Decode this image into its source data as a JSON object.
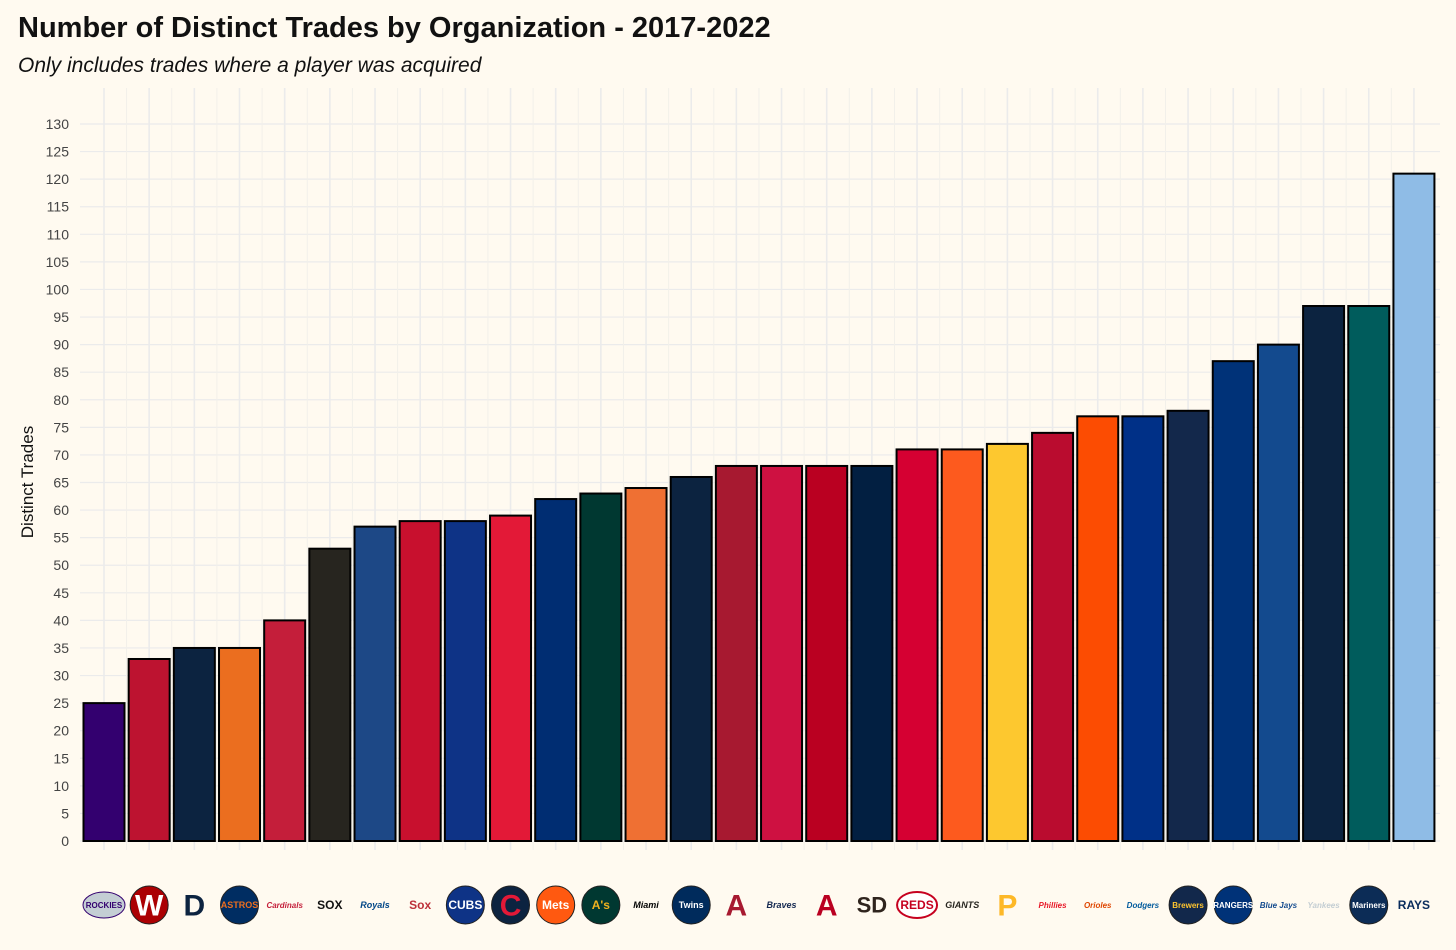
{
  "chart_data": {
    "type": "bar",
    "title": "Number of Distinct Trades by Organization - 2017-2022",
    "subtitle": "Only includes trades where a player was acquired",
    "xlabel": "",
    "ylabel": "Distinct Trades",
    "ylim": [
      0,
      130
    ],
    "ytick_step": 5,
    "grid": true,
    "categories": [
      "ROCKIES",
      "W",
      "D",
      "ASTROS",
      "Cardinals",
      "SOX",
      "Royals",
      "Sox",
      "CUBS",
      "C",
      "Mets",
      "A's",
      "Miami",
      "Twins",
      "A",
      "Braves",
      "A",
      "SD",
      "REDS",
      "GIANTS",
      "P",
      "Phillies",
      "Orioles",
      "Dodgers",
      "Brewers",
      "RANGERS",
      "Blue Jays",
      "Yankees",
      "Mariners",
      "RAYS"
    ],
    "values": [
      25,
      33,
      35,
      35,
      40,
      53,
      57,
      58,
      58,
      59,
      62,
      63,
      64,
      66,
      68,
      68,
      68,
      68,
      71,
      71,
      72,
      74,
      77,
      77,
      78,
      87,
      90,
      97,
      97,
      121
    ],
    "colors": [
      "#33006f",
      "#bd1330",
      "#0c2340",
      "#eb6e1f",
      "#c41e3a",
      "#27251f",
      "#1d4886",
      "#c8102e",
      "#0e3386",
      "#e31937",
      "#002d72",
      "#003831",
      "#ef7033",
      "#0c2340",
      "#a71930",
      "#ce1141",
      "#ba0021",
      "#021f41",
      "#d50032",
      "#fd5a1e",
      "#fdc82f",
      "#ba0c2f",
      "#fc4c02",
      "#003087",
      "#13284b",
      "#003278",
      "#134a8e",
      "#0c2340",
      "#005c5c",
      "#8fbce6"
    ],
    "logos": [
      {
        "text": "ROCKIES",
        "fg": "#33006f",
        "bg": "#c4ced4",
        "shape": "badge"
      },
      {
        "text": "W",
        "fg": "#ffffff",
        "bg": "#ab0003",
        "shape": "circle"
      },
      {
        "text": "D",
        "fg": "#0c2340",
        "bg": "#fffaf0",
        "shape": "plain"
      },
      {
        "text": "ASTROS",
        "fg": "#eb6e1f",
        "bg": "#002d62",
        "shape": "circle"
      },
      {
        "text": "Cardinals",
        "fg": "#c41e3a",
        "bg": "#fffaf0",
        "shape": "plain"
      },
      {
        "text": "SOX",
        "fg": "#111111",
        "bg": "#fffaf0",
        "shape": "plain"
      },
      {
        "text": "Royals",
        "fg": "#004687",
        "bg": "#fffaf0",
        "shape": "plain"
      },
      {
        "text": "Sox",
        "fg": "#bd3039",
        "bg": "#fffaf0",
        "shape": "plain"
      },
      {
        "text": "CUBS",
        "fg": "#ffffff",
        "bg": "#0e3386",
        "shape": "circle"
      },
      {
        "text": "C",
        "fg": "#e31937",
        "bg": "#0c2340",
        "shape": "circle"
      },
      {
        "text": "Mets",
        "fg": "#ffffff",
        "bg": "#ff5910",
        "shape": "circle"
      },
      {
        "text": "A's",
        "fg": "#efb21e",
        "bg": "#003831",
        "shape": "circle"
      },
      {
        "text": "Miami",
        "fg": "#000000",
        "bg": "#fffaf0",
        "shape": "plain"
      },
      {
        "text": "Twins",
        "fg": "#ffffff",
        "bg": "#002b5c",
        "shape": "circle"
      },
      {
        "text": "A",
        "fg": "#a71930",
        "bg": "#fffaf0",
        "shape": "plain"
      },
      {
        "text": "Braves",
        "fg": "#13274f",
        "bg": "#fffaf0",
        "shape": "plain"
      },
      {
        "text": "A",
        "fg": "#ba0021",
        "bg": "#fffaf0",
        "shape": "plain"
      },
      {
        "text": "SD",
        "fg": "#2f241d",
        "bg": "#fffaf0",
        "shape": "plain"
      },
      {
        "text": "REDS",
        "fg": "#c6011f",
        "bg": "#fffaf0",
        "shape": "oval"
      },
      {
        "text": "GIANTS",
        "fg": "#27251f",
        "bg": "#fffaf0",
        "shape": "plain"
      },
      {
        "text": "P",
        "fg": "#fdb827",
        "bg": "#fffaf0",
        "shape": "plain"
      },
      {
        "text": "Phillies",
        "fg": "#e81828",
        "bg": "#fffaf0",
        "shape": "plain"
      },
      {
        "text": "Orioles",
        "fg": "#df4601",
        "bg": "#fffaf0",
        "shape": "plain"
      },
      {
        "text": "Dodgers",
        "fg": "#005a9c",
        "bg": "#fffaf0",
        "shape": "plain"
      },
      {
        "text": "Brewers",
        "fg": "#ffc52f",
        "bg": "#12284b",
        "shape": "circle"
      },
      {
        "text": "RANGERS",
        "fg": "#ffffff",
        "bg": "#003278",
        "shape": "circle"
      },
      {
        "text": "Blue Jays",
        "fg": "#134a8e",
        "bg": "#fffaf0",
        "shape": "plain"
      },
      {
        "text": "Yankees",
        "fg": "#c4ced3",
        "bg": "#fffaf0",
        "shape": "plain"
      },
      {
        "text": "Mariners",
        "fg": "#ffffff",
        "bg": "#0c2c56",
        "shape": "circle"
      },
      {
        "text": "RAYS",
        "fg": "#092c5c",
        "bg": "#fffaf0",
        "shape": "plain"
      }
    ]
  }
}
